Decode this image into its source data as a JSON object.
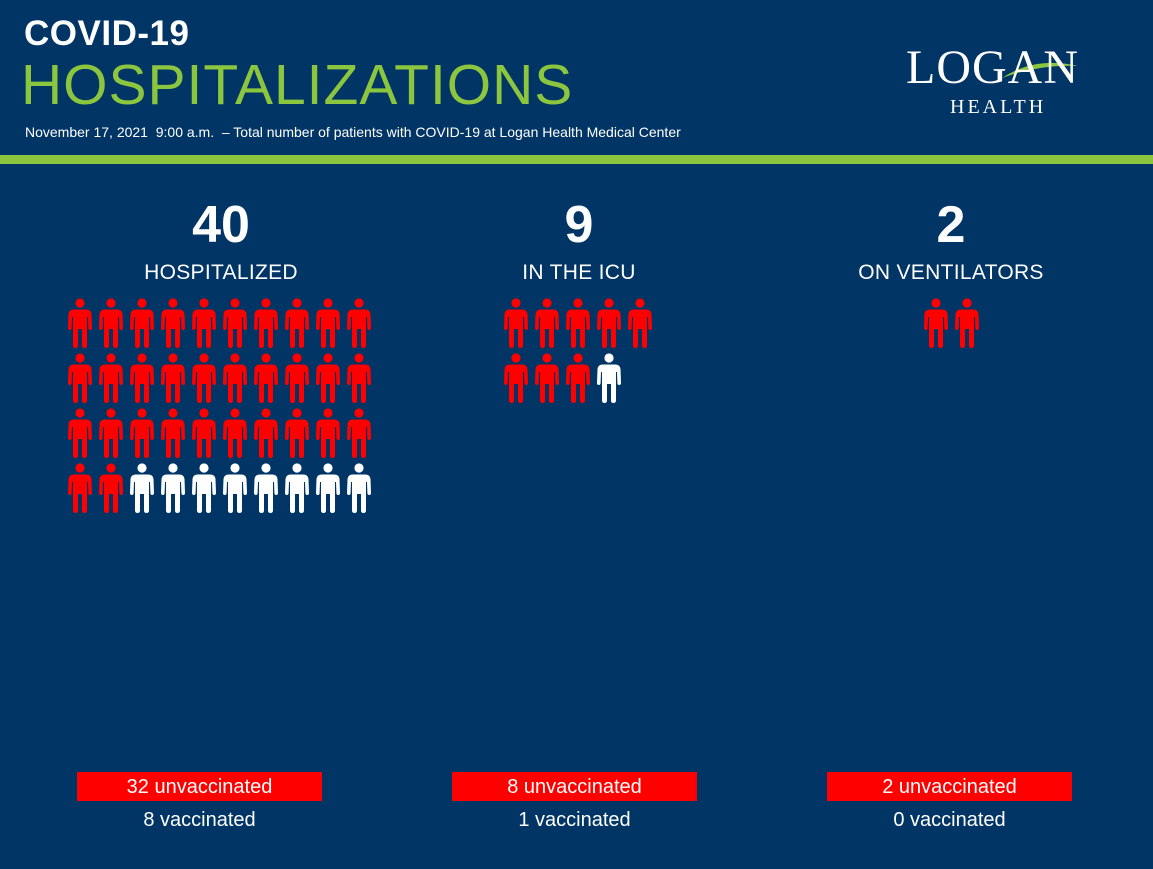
{
  "header": {
    "title_line1": "COVID-19",
    "title_line2": "HOSPITALIZATIONS",
    "subtitle": "November 17, 2021  9:00 a.m.  – Total number of patients with COVID-19 at Logan Health Medical Center"
  },
  "logo": {
    "name": "LOGAN",
    "sub": "HEALTH"
  },
  "colors": {
    "background": "#013565",
    "accent_green": "#8cc63f",
    "unvaccinated": "#ff0000",
    "vaccinated": "#ffffff"
  },
  "icons": {
    "person": "person-icon"
  },
  "stats": [
    {
      "number": "40",
      "label": "HOSPITALIZED",
      "unvaccinated_count": 32,
      "vaccinated_count": 8,
      "unvaccinated_text": "32 unvaccinated",
      "vaccinated_text": "8 vaccinated"
    },
    {
      "number": "9",
      "label": "IN THE ICU",
      "unvaccinated_count": 8,
      "vaccinated_count": 1,
      "unvaccinated_text": "8 unvaccinated",
      "vaccinated_text": "1 vaccinated"
    },
    {
      "number": "2",
      "label": "ON VENTILATORS",
      "unvaccinated_count": 2,
      "vaccinated_count": 0,
      "unvaccinated_text": "2 unvaccinated",
      "vaccinated_text": "0 vaccinated"
    }
  ]
}
